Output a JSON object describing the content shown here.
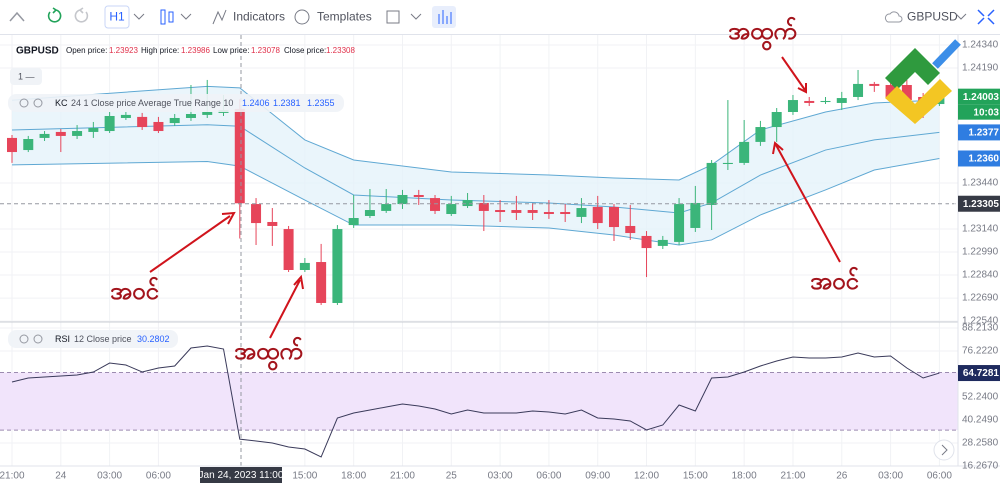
{
  "toolbar": {
    "interval": "H1",
    "indicators": "Indicators",
    "templates": "Templates",
    "symbol": "GBPUSD"
  },
  "chart_data": [
    {
      "type": "candlestick",
      "title": "GBPUSD",
      "ohlc_legend": [
        {
          "label": "Open price:",
          "value": 1.23923
        },
        {
          "label": "High price:",
          "value": 1.23986
        },
        {
          "label": "Low price:",
          "value": 1.23078
        },
        {
          "label": "Close price:",
          "value": 1.23308
        }
      ],
      "pane_label": "1 —",
      "crosshair_label": "Jan 24, 2023 11:00",
      "categories": [
        "21:00",
        null,
        null,
        "24",
        null,
        null,
        "03:00",
        null,
        null,
        "06:00",
        null,
        null,
        null,
        null,
        null,
        null,
        null,
        null,
        "15:00",
        null,
        null,
        "18:00",
        null,
        null,
        "21:00",
        null,
        null,
        "25",
        null,
        null,
        "03:00",
        null,
        null,
        "06:00",
        null,
        null,
        "09:00",
        null,
        null,
        "12:00",
        null,
        null,
        "15:00",
        null,
        null,
        "18:00",
        null,
        null,
        "21:00",
        null,
        null,
        "26",
        null,
        null,
        "03:00",
        null,
        null,
        "06:00"
      ],
      "open": [
        1.23734,
        1.23655,
        1.23734,
        1.23773,
        1.23747,
        1.23773,
        1.23779,
        1.23864,
        1.23871,
        1.23838,
        1.23831,
        1.23864,
        1.23884,
        1.23897,
        1.23923,
        1.23303,
        1.23186,
        1.2314,
        1.22873,
        1.22925,
        1.22658,
        1.23166,
        1.23225,
        1.23258,
        1.23303,
        1.23362,
        1.23342,
        1.23238,
        1.2329,
        1.2331,
        1.23264,
        1.23264,
        1.23264,
        1.23251,
        1.23251,
        1.23219,
        1.23284,
        1.23284,
        1.2316,
        1.23095,
        1.2303,
        1.23056,
        1.23147,
        1.23297,
        1.23564,
        1.23571,
        1.23708,
        1.23805,
        1.23903,
        1.23975,
        1.23968,
        1.23962,
        1.24001,
        1.24086,
        1.24079,
        1.24079,
        1.24001,
        1.23955
      ],
      "high": [
        1.23753,
        1.23747,
        1.23779,
        1.23792,
        1.23818,
        1.23838,
        1.23903,
        1.23903,
        1.23897,
        1.23871,
        1.2389,
        1.24079,
        1.24112,
        1.24014,
        1.23986,
        1.23342,
        1.23277,
        1.2316,
        1.22951,
        1.23043,
        1.23166,
        1.23362,
        1.23401,
        1.23401,
        1.23395,
        1.23395,
        1.23362,
        1.23356,
        1.23375,
        1.23362,
        1.23329,
        1.23356,
        1.2331,
        1.23329,
        1.23303,
        1.23342,
        1.23356,
        1.23303,
        1.23297,
        1.23127,
        1.23095,
        1.23342,
        1.23421,
        1.2359,
        1.23981,
        1.23851,
        1.23845,
        1.23929,
        1.24014,
        1.24001,
        1.24001,
        1.24034,
        1.24177,
        1.24099,
        1.24118,
        1.24112,
        1.24027,
        1.24034
      ],
      "low": [
        1.23571,
        1.23642,
        1.23714,
        1.23642,
        1.23727,
        1.23734,
        1.23766,
        1.23851,
        1.23786,
        1.23766,
        1.23812,
        1.23845,
        1.23864,
        1.23877,
        1.23078,
        1.23036,
        1.2303,
        1.2286,
        1.2286,
        1.22645,
        1.22645,
        1.23147,
        1.23212,
        1.23245,
        1.23271,
        1.23297,
        1.23238,
        1.23225,
        1.23277,
        1.23127,
        1.23186,
        1.23199,
        1.23199,
        1.23206,
        1.23186,
        1.23179,
        1.2314,
        1.23062,
        1.23069,
        1.22827,
        1.2301,
        1.23036,
        1.23121,
        1.23134,
        1.23525,
        1.23558,
        1.23682,
        1.23708,
        1.23884,
        1.23942,
        1.23955,
        1.23916,
        1.23981,
        1.24034,
        1.23981,
        1.23916,
        1.23864,
        1.23942
      ],
      "close": [
        1.23642,
        1.23727,
        1.2376,
        1.23747,
        1.23779,
        1.23799,
        1.23877,
        1.23884,
        1.23805,
        1.23779,
        1.23864,
        1.2389,
        1.23903,
        1.23916,
        1.23308,
        1.23179,
        1.2316,
        1.22873,
        1.22919,
        1.22658,
        1.2314,
        1.23212,
        1.23264,
        1.23303,
        1.23362,
        1.23349,
        1.23258,
        1.23303,
        1.23329,
        1.23258,
        1.23251,
        1.23245,
        1.23245,
        1.23238,
        1.23238,
        1.23277,
        1.23179,
        1.23153,
        1.23114,
        1.23016,
        1.23069,
        1.23303,
        1.2331,
        1.23571,
        1.23571,
        1.23708,
        1.23805,
        1.23903,
        1.23981,
        1.23962,
        1.23975,
        1.23994,
        1.24086,
        1.24073,
        1.23994,
        1.23981,
        1.23955,
        1.24003
      ],
      "up_color": "#3bb57a",
      "down_color": "#e6455a",
      "kc": {
        "name": "KC",
        "params": "24 1 Close price Average True Range 10",
        "legend_values": [
          1.2406,
          1.2381,
          1.2355
        ],
        "color": "#5fa8d3",
        "x": [
          0,
          12,
          14,
          18,
          21,
          27,
          33,
          37,
          41,
          43,
          46,
          50,
          53,
          57
        ],
        "bands": [
          {
            "values": [
              1.2398,
              1.2407,
              1.2406,
              1.23721,
              1.2359,
              1.23512,
              1.23492,
              1.23473,
              1.2346,
              1.23558,
              1.23786,
              1.23903,
              1.23962,
              1.23981
            ]
          },
          {
            "values": [
              1.23786,
              1.2382,
              1.2381,
              1.23538,
              1.23362,
              1.23329,
              1.2331,
              1.23284,
              1.23245,
              1.2331,
              1.23492,
              1.23655,
              1.23721,
              1.2377
            ]
          },
          {
            "values": [
              1.23558,
              1.2358,
              1.2355,
              1.23329,
              1.23166,
              1.23166,
              1.23147,
              1.23101,
              1.23036,
              1.23069,
              1.23232,
              1.23395,
              1.23525,
              1.236
            ]
          }
        ]
      },
      "ylim": [
        1.22534,
        1.24405
      ],
      "yticks": [
        {
          "value": 1.2434,
          "label": "1.24340"
        },
        {
          "value": 1.2419,
          "label": "1.24190"
        },
        {
          "value": 1.2344,
          "label": "1.23440"
        },
        {
          "value": 1.2314,
          "label": "1.23140"
        },
        {
          "value": 1.2299,
          "label": "1.22990"
        },
        {
          "value": 1.2284,
          "label": "1.22840"
        },
        {
          "value": 1.2269,
          "label": "1.22690"
        },
        {
          "value": 1.2254,
          "label": "1.22540"
        }
      ],
      "markers": [
        {
          "value": 1.24003,
          "color": "#22a35a"
        },
        {
          "value": 1.2377,
          "color": "#2f7de1"
        },
        {
          "value": 1.236,
          "label": "1.2360",
          "color": "#2f7de1"
        },
        {
          "value": 1.23305,
          "color": "#363a45",
          "line": true
        }
      ],
      "countdown": "10:03",
      "grid": true,
      "annotations": [
        "အထွက်",
        "အဝင်",
        "အထွက်",
        "အဝင်"
      ]
    },
    {
      "type": "line",
      "title": "RSI",
      "params": "12 Close price",
      "legend_value": 30.2802,
      "color": "#3a3a5a",
      "values": [
        60.06,
        62.15,
        62.67,
        63.19,
        63.71,
        65.27,
        69.96,
        68.92,
        65.27,
        67.36,
        68.4,
        77.79,
        78.83,
        77.26,
        30.2802,
        29.3,
        28.26,
        26.18,
        25.13,
        20.96,
        41.29,
        43.9,
        45.46,
        47.03,
        48.59,
        47.55,
        45.98,
        43.38,
        45.46,
        43.9,
        43.9,
        43.9,
        44.94,
        44.42,
        43.38,
        45.46,
        41.29,
        40.77,
        39.73,
        35.04,
        37.64,
        48.07,
        44.94,
        62.15,
        62.67,
        65.27,
        68.4,
        71.01,
        73.09,
        72.57,
        72.57,
        73.09,
        75.18,
        73.09,
        73.61,
        67.36,
        62.15,
        64.7281
      ],
      "levels": [
        65,
        35
      ],
      "band_color": "#f1e4fb",
      "ylim": [
        16.267,
        91.34
      ],
      "yticks": [
        {
          "value": 88.213,
          "label": "88.2130"
        },
        {
          "value": 76.222,
          "label": "76.2220"
        },
        {
          "value": 52.24,
          "label": "52.2400"
        },
        {
          "value": 40.249,
          "label": "40.2490"
        },
        {
          "value": 28.258,
          "label": "28.2580"
        },
        {
          "value": 16.267,
          "label": "16.2670"
        }
      ],
      "markers": [
        {
          "value": 64.7281,
          "color": "#1e2a5e"
        }
      ]
    }
  ]
}
